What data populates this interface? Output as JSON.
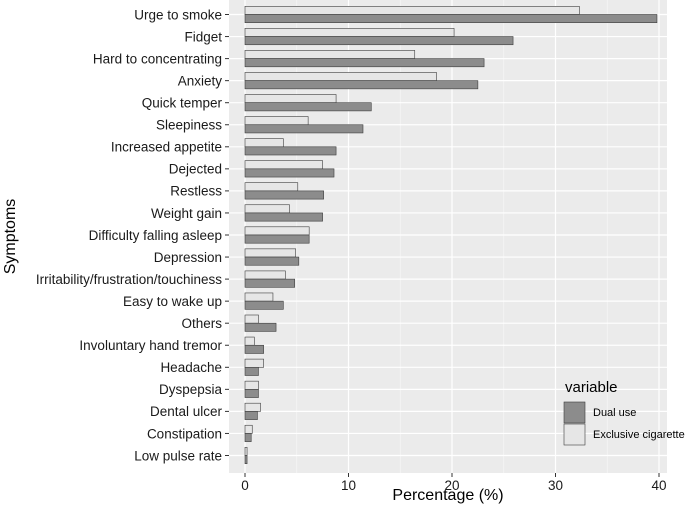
{
  "chart_data": {
    "type": "bar",
    "orientation": "horizontal",
    "title": "",
    "xlabel": "Percentage (%)",
    "ylabel": "Symptoms",
    "xlim": [
      0,
      41
    ],
    "xticks": [
      0,
      10,
      20,
      30,
      40
    ],
    "grid": true,
    "legend": {
      "title": "variable",
      "position": "bottom-right"
    },
    "categories": [
      "Urge to smoke",
      "Fidget",
      "Hard to concentrating",
      "Anxiety",
      "Quick temper",
      "Sleepiness",
      "Increased appetite",
      "Dejected",
      "Restless",
      "Weight gain",
      "Difficulty falling asleep",
      "Depression",
      "Irritability/frustration/touchiness",
      "Easy to wake up",
      "Others",
      "Involuntary hand tremor",
      "Headache",
      "Dyspepsia",
      "Dental ulcer",
      "Constipation",
      "Low pulse rate"
    ],
    "series": [
      {
        "name": "Dual use",
        "color": "#8c8c8c",
        "values": [
          39.8,
          25.9,
          23.1,
          22.5,
          12.2,
          11.4,
          8.8,
          8.6,
          7.6,
          7.5,
          6.2,
          5.2,
          4.8,
          3.7,
          3.0,
          1.8,
          1.3,
          1.3,
          1.2,
          0.6,
          0.2
        ]
      },
      {
        "name": "Exclusive cigarette",
        "color": "#e6e6e6",
        "values": [
          32.3,
          20.2,
          16.4,
          18.5,
          8.8,
          6.1,
          3.7,
          7.5,
          5.1,
          4.3,
          6.2,
          4.9,
          3.9,
          2.7,
          1.3,
          0.9,
          1.8,
          1.3,
          1.5,
          0.7,
          0.2
        ]
      }
    ]
  }
}
